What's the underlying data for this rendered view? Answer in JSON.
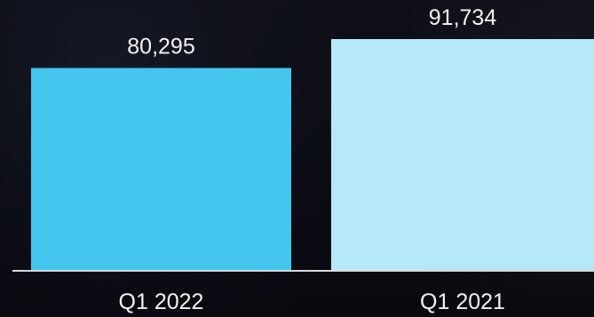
{
  "chart_data": {
    "type": "bar",
    "categories": [
      "Q1 2022",
      "Q1 2021"
    ],
    "values": [
      80295,
      91734
    ],
    "value_labels": [
      "80,295",
      "91,734"
    ],
    "colors": [
      "#45c6ee",
      "#b5e9f7"
    ],
    "baseline_color": "#d8d8d8",
    "grid": false,
    "legend": "none",
    "ylim": [
      0,
      91734
    ]
  }
}
